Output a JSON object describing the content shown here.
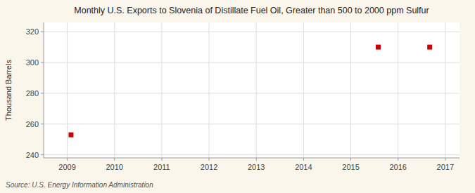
{
  "chart_data": {
    "type": "scatter",
    "title": "Monthly U.S. Exports to Slovenia of Distillate Fuel Oil, Greater than 500 to 2000 ppm Sulfur",
    "ylabel": "Thousand Barrels",
    "source": "Source: U.S. Energy Information Administration",
    "x": [
      2009.08,
      2015.58,
      2016.67
    ],
    "values": [
      253,
      310,
      310
    ],
    "color": "#cc0000",
    "marker": "square",
    "xlim": [
      2008.5,
      2017.3
    ],
    "ylim": [
      238,
      326
    ],
    "xticks": [
      2009,
      2010,
      2011,
      2012,
      2013,
      2014,
      2015,
      2016,
      2017
    ],
    "yticks": [
      240,
      260,
      280,
      300,
      320
    ],
    "grid": true
  }
}
